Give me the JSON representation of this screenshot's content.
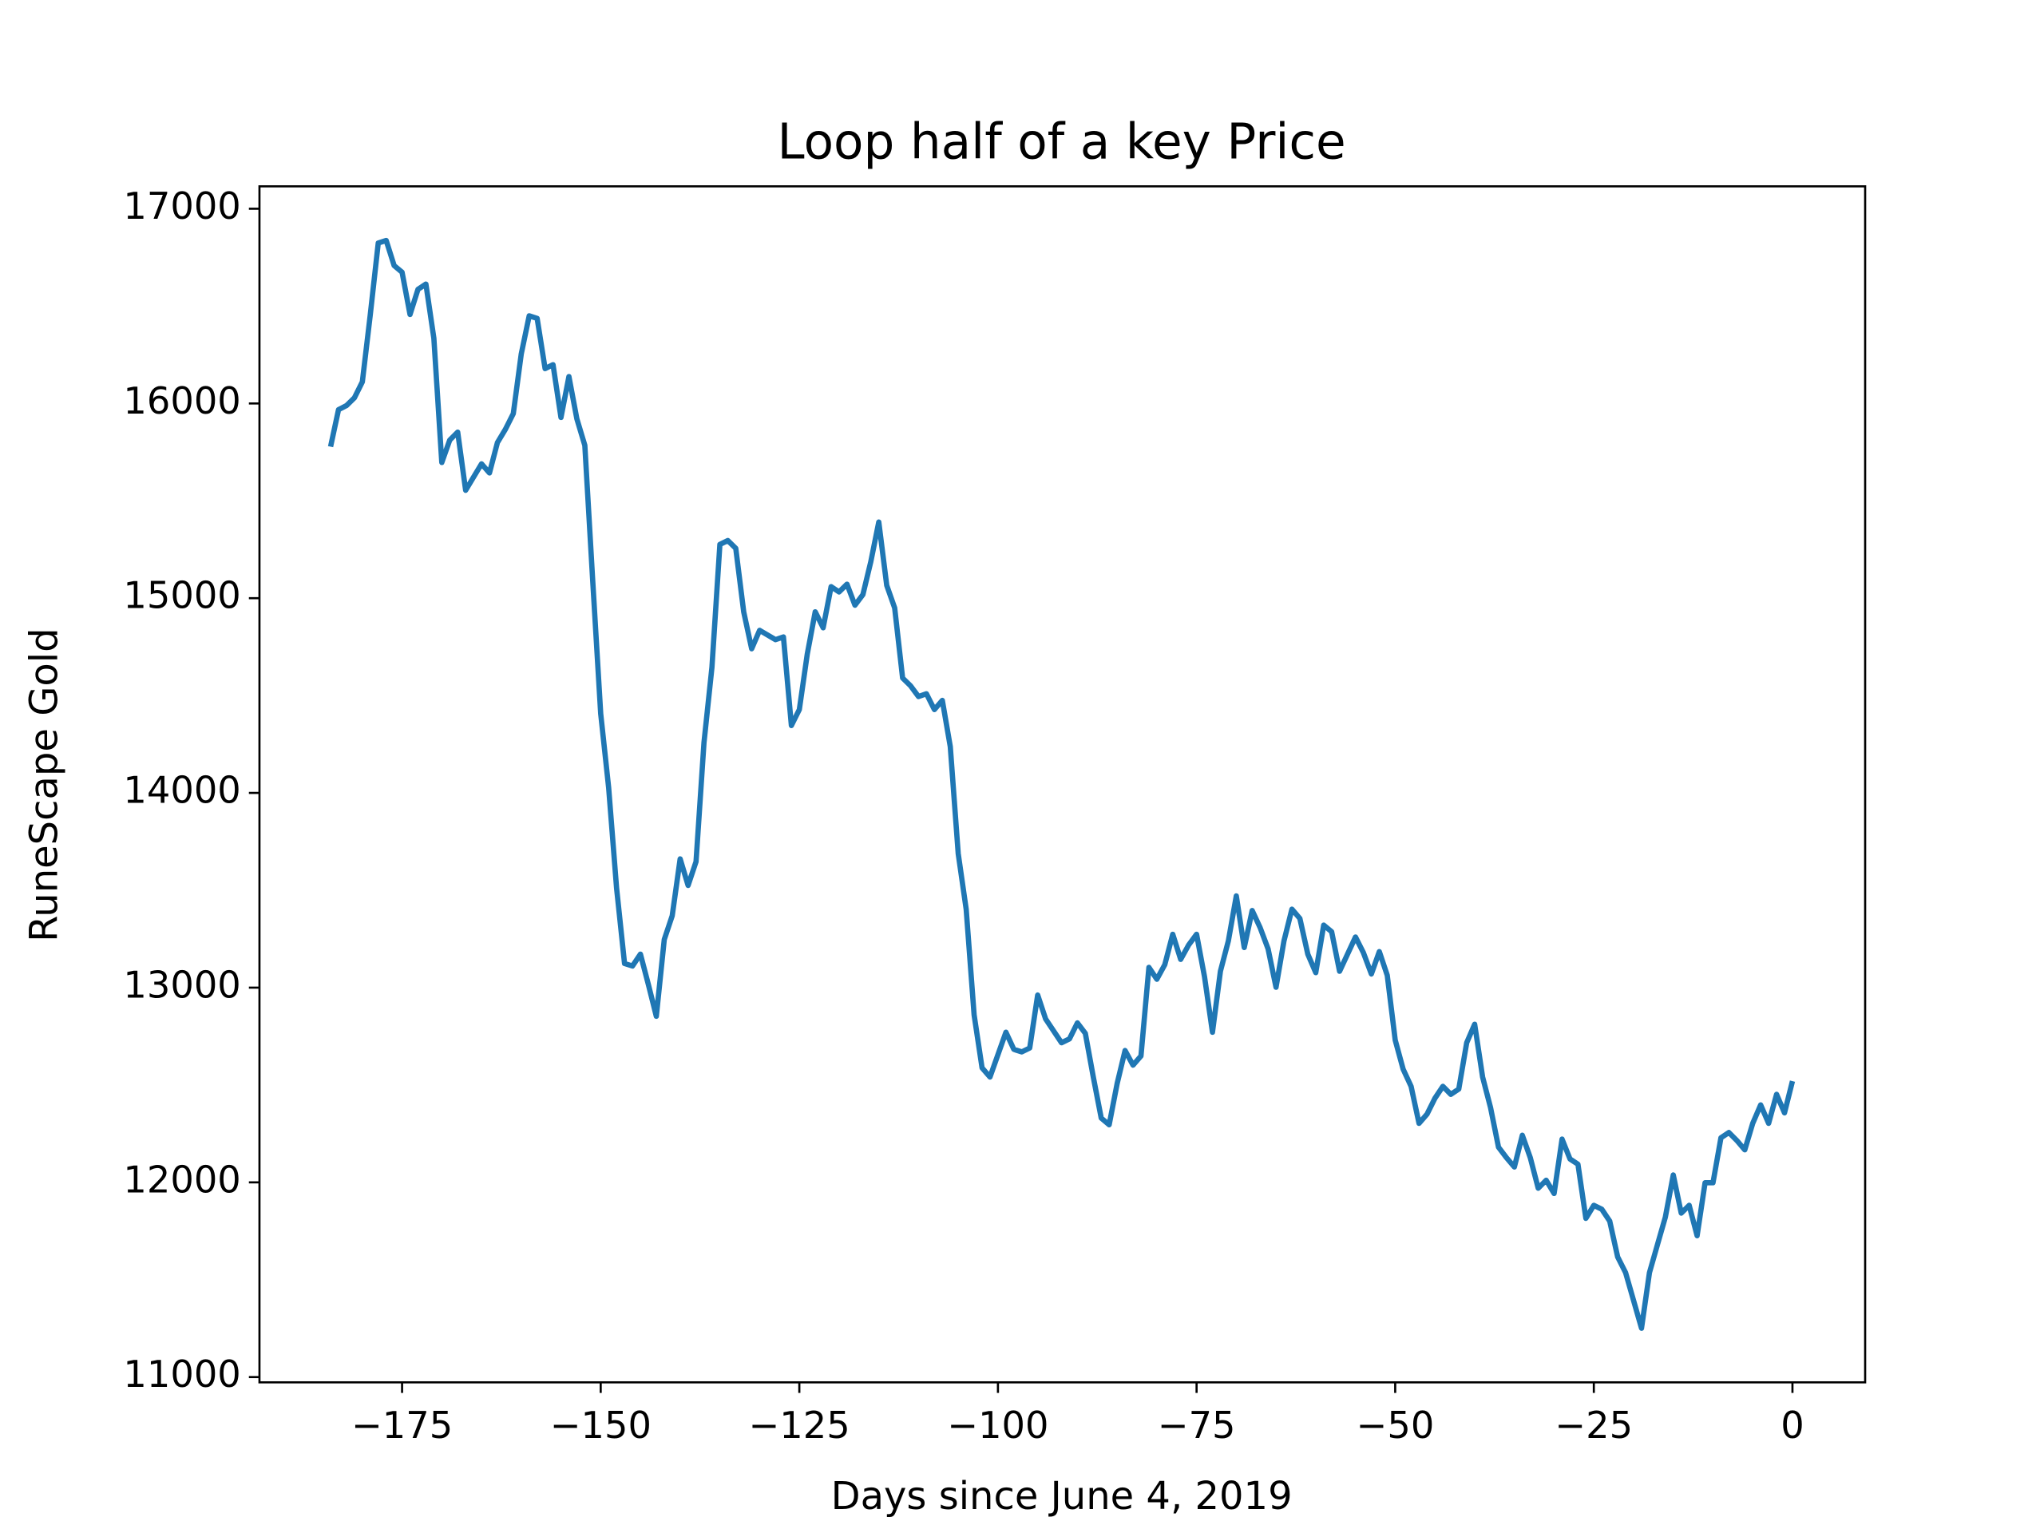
{
  "chart_data": {
    "type": "line",
    "title": "Loop half of a key Price",
    "xlabel": "Days since June 4, 2019",
    "ylabel": "RuneScape Gold",
    "x": [
      -184,
      -183,
      -182,
      -181,
      -180,
      -179,
      -178,
      -177,
      -176,
      -175,
      -174,
      -173,
      -172,
      -171,
      -170,
      -169,
      -168,
      -167,
      -165,
      -164,
      -163,
      -162,
      -161,
      -160,
      -159,
      -158,
      -157,
      -156,
      -155,
      -154,
      -153,
      -152,
      -151,
      -150,
      -149,
      -148,
      -147,
      -146,
      -145,
      -144,
      -143,
      -142,
      -141,
      -140,
      -139,
      -138,
      -137,
      -136,
      -135,
      -134,
      -133,
      -132,
      -131,
      -130,
      -128,
      -127,
      -126,
      -125,
      -124,
      -123,
      -122,
      -121,
      -120,
      -119,
      -118,
      -117,
      -116,
      -115,
      -114,
      -113,
      -112,
      -111,
      -110,
      -109,
      -108,
      -107,
      -106,
      -105,
      -104,
      -103,
      -102,
      -101,
      -100,
      -99,
      -98,
      -97,
      -96,
      -95,
      -94,
      -92,
      -91,
      -90,
      -89,
      -88,
      -87,
      -86,
      -85,
      -84,
      -83,
      -82,
      -81,
      -80,
      -79,
      -78,
      -77,
      -76,
      -75,
      -74,
      -73,
      -72,
      -71,
      -70,
      -69,
      -68,
      -67,
      -66,
      -65,
      -64,
      -63,
      -62,
      -61,
      -60,
      -59,
      -58,
      -57,
      -55,
      -54,
      -53,
      -52,
      -51,
      -50,
      -49,
      -48,
      -47,
      -46,
      -45,
      -44,
      -43,
      -42,
      -41,
      -40,
      -39,
      -38,
      -37,
      -36,
      -35,
      -34,
      -33,
      -32,
      -31,
      -30,
      -29,
      -28,
      -27,
      -26,
      -25,
      -24,
      -23,
      -22,
      -21,
      -19,
      -18,
      -17,
      -16,
      -15,
      -14,
      -13,
      -12,
      -11,
      -10,
      -9,
      -8,
      -7,
      -6,
      -5,
      -4,
      -3,
      -2,
      -1,
      0
    ],
    "series": [
      {
        "name": "Price",
        "color": "#1f77b4",
        "values": [
          15778,
          15968,
          15989,
          16029,
          16111,
          16457,
          16824,
          16837,
          16708,
          16674,
          16457,
          16586,
          16613,
          16335,
          15697,
          15812,
          15853,
          15554,
          15690,
          15643,
          15799,
          15867,
          15948,
          16254,
          16450,
          16437,
          16179,
          16199,
          15928,
          16138,
          15921,
          15785,
          15086,
          14407,
          14027,
          13511,
          13124,
          13111,
          13172,
          13016,
          12853,
          13247,
          13369,
          13661,
          13525,
          13647,
          14258,
          14645,
          15276,
          15296,
          15256,
          14930,
          14740,
          14835,
          14787,
          14801,
          14346,
          14428,
          14713,
          14930,
          14848,
          15059,
          15032,
          15072,
          14964,
          15018,
          15188,
          15391,
          15066,
          14950,
          14590,
          14550,
          14495,
          14509,
          14428,
          14475,
          14238,
          13688,
          13403,
          12860,
          12588,
          12541,
          12656,
          12771,
          12683,
          12670,
          12690,
          12962,
          12839,
          12717,
          12737,
          12819,
          12765,
          12541,
          12330,
          12296,
          12507,
          12677,
          12602,
          12649,
          13104,
          13043,
          13118,
          13274,
          13145,
          13219,
          13274,
          13056,
          12771,
          13084,
          13240,
          13471,
          13206,
          13396,
          13308,
          13199,
          13002,
          13240,
          13403,
          13355,
          13172,
          13077,
          13321,
          13287,
          13084,
          13260,
          13179,
          13070,
          13185,
          13063,
          12731,
          12581,
          12493,
          12303,
          12350,
          12432,
          12493,
          12452,
          12479,
          12717,
          12812,
          12541,
          12384,
          12181,
          12127,
          12079,
          12242,
          12127,
          11970,
          12011,
          11943,
          12222,
          12120,
          12093,
          11815,
          11882,
          11862,
          11801,
          11617,
          11536,
          11251,
          11536,
          11679,
          11821,
          12038,
          11842,
          11882,
          11726,
          11998,
          11998,
          12229,
          12256,
          12215,
          12167,
          12303,
          12398,
          12303,
          12452,
          12357,
          12520
        ]
      }
    ],
    "xlim": [
      -192.95,
      9.15
    ],
    "xticks": [
      {
        "value": -175,
        "label": "−175"
      },
      {
        "value": -150,
        "label": "−150"
      },
      {
        "value": -125,
        "label": "−125"
      },
      {
        "value": -100,
        "label": "−100"
      },
      {
        "value": -75,
        "label": "−75"
      },
      {
        "value": -50,
        "label": "−50"
      },
      {
        "value": -25,
        "label": "−25"
      },
      0
    ],
    "ylim": [
      10973,
      17115
    ],
    "yticks": [
      11000,
      12000,
      13000,
      14000,
      15000,
      16000,
      17000
    ]
  }
}
